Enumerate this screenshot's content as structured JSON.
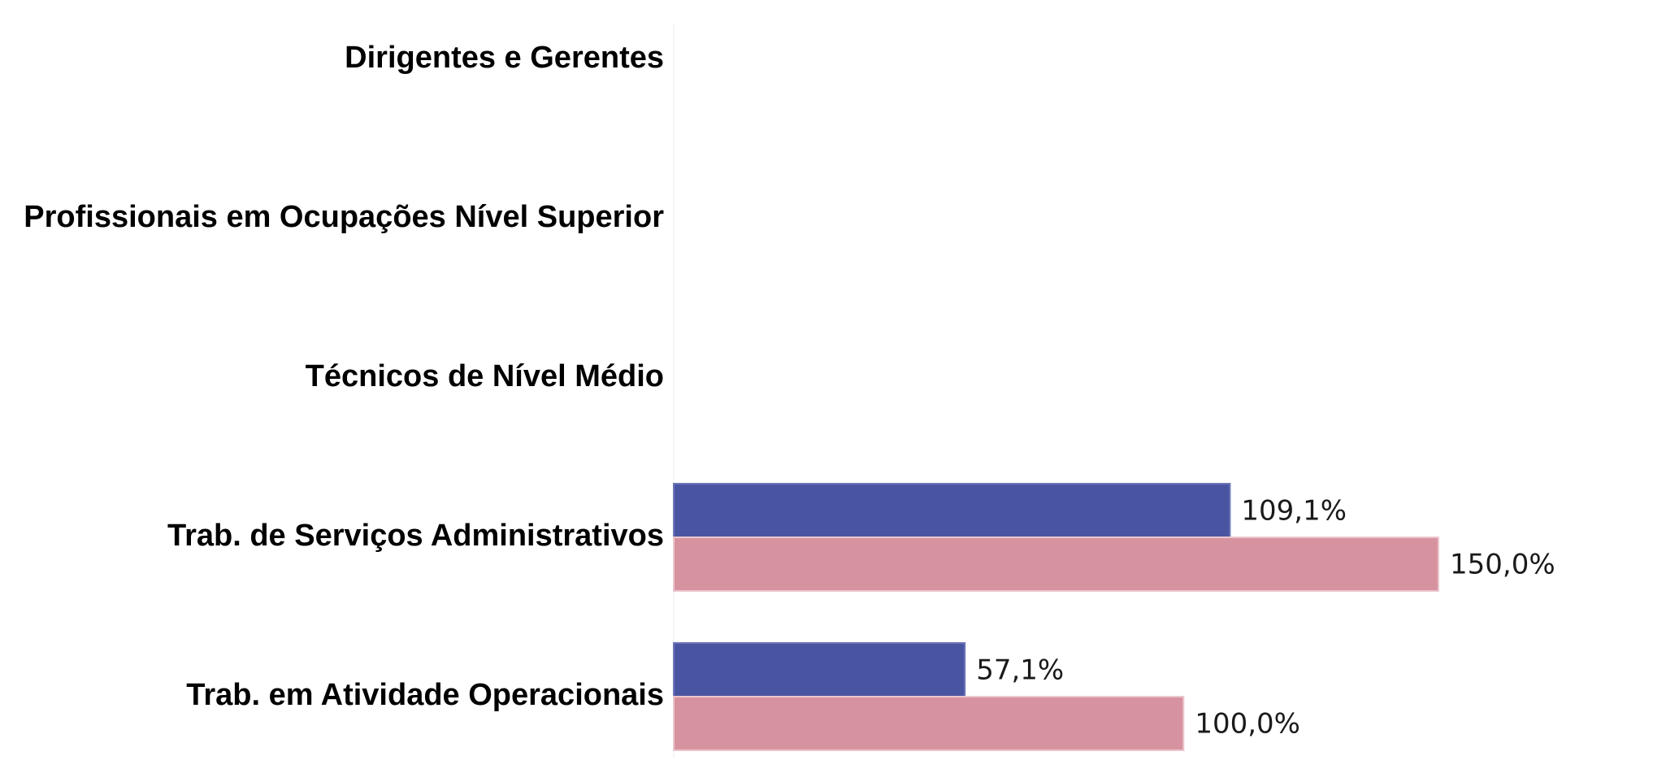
{
  "chart_data": {
    "type": "bar",
    "orientation": "horizontal",
    "categories": [
      "Dirigentes e Gerentes",
      "Profissionais em Ocupações Nível Superior",
      "Técnicos de Nível Médio",
      "Trab. de Serviços Administrativos",
      "Trab. em Atividade Operacionais"
    ],
    "series": [
      {
        "values": [
          null,
          null,
          null,
          109.1,
          57.1
        ],
        "labels": [
          "",
          "",
          "",
          "109,1%",
          "57,1%"
        ],
        "color": "#4a55a2"
      },
      {
        "values": [
          null,
          null,
          null,
          150.0,
          100.0
        ],
        "labels": [
          "",
          "",
          "",
          "150,0%",
          "100,0%"
        ],
        "color": "#d6939f"
      }
    ],
    "xlim": [
      0,
      150
    ],
    "grid": false,
    "legend": "none"
  }
}
